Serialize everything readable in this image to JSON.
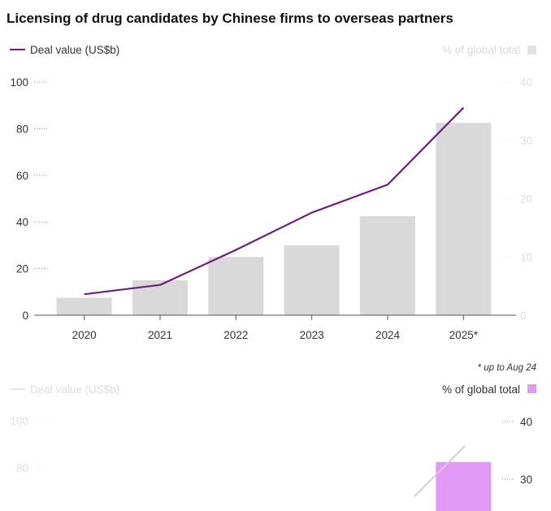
{
  "chart_data": {
    "type": "bar",
    "title": "Licensing of drug candidates by Chinese firms to overseas partners",
    "categories": [
      "2020",
      "2021",
      "2022",
      "2023",
      "2024",
      "2025*"
    ],
    "series": [
      {
        "name": "Deal value (US$b)",
        "kind": "line",
        "axis": "left",
        "color": "#6b1f7c",
        "values": [
          9,
          13,
          28,
          44,
          56,
          89
        ]
      },
      {
        "name": "% of global total",
        "kind": "bar",
        "axis": "right",
        "color": "#d9d9d9",
        "values": [
          3,
          6,
          10,
          12,
          17,
          33
        ]
      }
    ],
    "left_axis": {
      "label": "Deal value (US$b)",
      "ylim": [
        0,
        100
      ],
      "ticks": [
        0,
        20,
        40,
        60,
        80,
        100
      ]
    },
    "right_axis": {
      "label": "% of global total",
      "ylim": [
        0,
        40
      ],
      "ticks": [
        0,
        10,
        20,
        30,
        40
      ]
    },
    "footnote": "* up to Aug 24",
    "inset": {
      "description_legend_left": "Deal value (US$b)",
      "legend_right": "% of global total",
      "left_ticks": [
        100,
        80
      ],
      "right_ticks": [
        40,
        30
      ],
      "bar_value": 33,
      "bar_color": "#e09af5",
      "line_color": "#d0d0d0"
    }
  }
}
